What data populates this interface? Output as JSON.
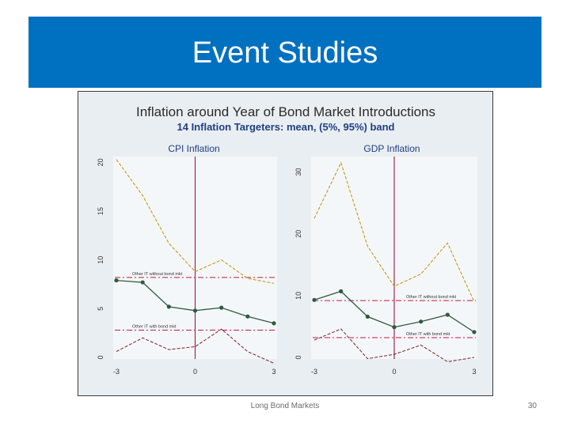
{
  "slide": {
    "title": "Event Studies",
    "footer": "Long Bond Markets",
    "page_number": "30"
  },
  "colors": {
    "header": "#0070c0",
    "figure_bg": "#e9eef2",
    "panel_bg": "#f4f7f9",
    "band": "#c49000",
    "mean": "#2f5a3e",
    "lower": "#7a2020",
    "reference": "#c8193c",
    "vline": "#9c2a55",
    "subtitle": "#1e3f80"
  },
  "chart_data": {
    "type": "line",
    "title": "Inflation around Year of Bond Market Introductions",
    "subtitle": "14 Inflation Targeters: mean, (5%, 95%) band",
    "panels": [
      {
        "title": "CPI Inflation",
        "x": [
          -3,
          -2,
          -1,
          0,
          1,
          2,
          3
        ],
        "x_ticks": [
          "-3",
          "0",
          "3"
        ],
        "y_ticks": [
          "0",
          "5",
          "10",
          "15",
          "20"
        ],
        "ylim": [
          0,
          20.6
        ],
        "series": [
          {
            "role": "upper",
            "values": [
              20.3,
              16.6,
              11.7,
              8.8,
              10.0,
              8.1,
              7.6
            ]
          },
          {
            "role": "mean",
            "values": [
              7.9,
              7.7,
              5.2,
              4.8,
              5.1,
              4.2,
              3.5
            ]
          },
          {
            "role": "lower",
            "values": [
              0.6,
              2.0,
              0.8,
              1.1,
              2.9,
              0.6,
              -0.6
            ]
          }
        ],
        "reference_lines": [
          {
            "label": "Other IT without bond mkt",
            "y": 8.2
          },
          {
            "label": "Other IT with bond mkt",
            "y": 2.8
          }
        ],
        "event_x": 0
      },
      {
        "title": "GDP Inflation",
        "x": [
          -3,
          -2,
          -1,
          0,
          1,
          2,
          3
        ],
        "x_ticks": [
          "-3",
          "0",
          "3"
        ],
        "y_ticks": [
          "0",
          "10",
          "20",
          "30"
        ],
        "ylim": [
          0,
          32.5
        ],
        "series": [
          {
            "role": "upper",
            "values": [
              22.5,
              31.5,
              18.0,
              11.5,
              13.5,
              18.5,
              9.0
            ]
          },
          {
            "role": "mean",
            "values": [
              9.3,
              10.7,
              6.6,
              4.9,
              5.8,
              6.9,
              4.1
            ]
          },
          {
            "role": "lower",
            "values": [
              2.8,
              4.6,
              -0.2,
              0.5,
              2.0,
              -0.7,
              0.0
            ]
          }
        ],
        "reference_lines": [
          {
            "label": "Other IT without bond mkt",
            "y": 9.2
          },
          {
            "label": "Other IT with bond mkt",
            "y": 3.2
          }
        ],
        "event_x": 0
      }
    ]
  }
}
